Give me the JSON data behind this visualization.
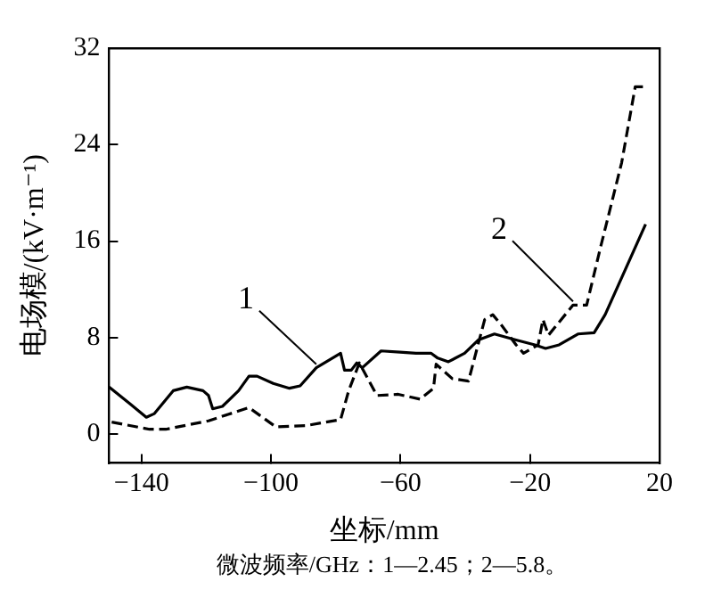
{
  "chart_data": {
    "type": "line",
    "xlabel": "坐标/mm",
    "ylabel": "电场模/(kV·m⁻¹)",
    "annotations": [
      "微波频率/GHz：1—2.45；2—5.8。"
    ],
    "xlim": [
      -150,
      20
    ],
    "xticks": [
      -140,
      -100,
      -60,
      -20,
      20
    ],
    "ylim": [
      -2.4,
      32
    ],
    "yticks": [
      0,
      8,
      16,
      24,
      32
    ],
    "grid": false,
    "legend": false,
    "marker": "none",
    "series": [
      {
        "name": "1",
        "color": "#000000",
        "line_style": "solid",
        "x": [
          -150,
          -143.5,
          -138.5,
          -136,
          -130.2,
          -126,
          -121,
          -119.3,
          -118,
          -115,
          -110,
          -106.8,
          -104.3,
          -99.3,
          -94.3,
          -91,
          -86,
          -78.5,
          -77.3,
          -75.2,
          -73.5,
          -71.8,
          -66,
          -60.2,
          -55.2,
          -50.5,
          -48.5,
          -45.2,
          -40.2,
          -36,
          -31,
          -24.3,
          -18.5,
          -15.2,
          -11,
          -5.2,
          -0.2,
          3.2,
          15.7
        ],
        "values": [
          3.9,
          2.5,
          1.4,
          1.7,
          3.6,
          3.9,
          3.6,
          3.2,
          2.1,
          2.3,
          3.6,
          4.8,
          4.8,
          4.2,
          3.8,
          4.0,
          5.5,
          6.7,
          5.3,
          5.3,
          5.9,
          5.5,
          6.9,
          6.8,
          6.7,
          6.7,
          6.3,
          6.0,
          6.7,
          7.8,
          8.3,
          7.8,
          7.4,
          7.1,
          7.4,
          8.3,
          8.4,
          9.9,
          17.4
        ]
      },
      {
        "name": "2",
        "color": "#000000",
        "line_style": "dashed",
        "x": [
          -149.2,
          -137.5,
          -132.5,
          -119.3,
          -106.8,
          -98.5,
          -89.3,
          -78.5,
          -76,
          -72.7,
          -67.3,
          -60.7,
          -54,
          -49.8,
          -49,
          -44,
          -39,
          -34,
          -31.5,
          -29,
          -24.3,
          -22,
          -17.5,
          -16,
          -14.3,
          -6.7,
          -2.5,
          1.7,
          8.3,
          12.5,
          15
        ],
        "values": [
          1.0,
          0.4,
          0.4,
          1.1,
          2.2,
          0.6,
          0.7,
          1.2,
          3.6,
          5.9,
          3.2,
          3.3,
          2.9,
          3.8,
          5.8,
          4.6,
          4.4,
          9.5,
          9.9,
          9.1,
          7.4,
          6.7,
          7.4,
          9.5,
          8.2,
          10.7,
          10.7,
          15.4,
          22.5,
          28.8,
          28.8
        ]
      }
    ]
  }
}
